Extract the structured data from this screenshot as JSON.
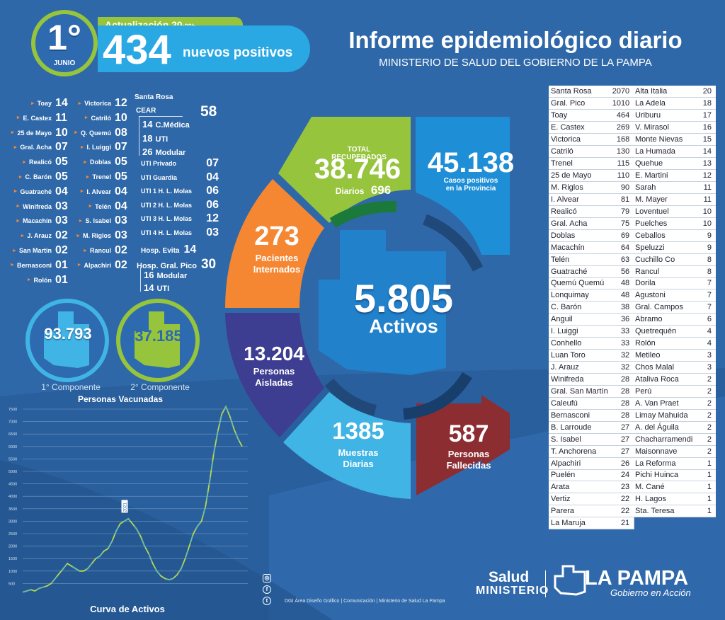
{
  "header": {
    "date_day": "1°",
    "date_month": "JUNIO",
    "update_label": "Actualización 20",
    "update_time": ":00h",
    "new_positives": "434",
    "new_positives_label": "nuevos positivos",
    "title": "Informe epidemiológico diario",
    "subtitle": "MINISTERIO DE SALUD DEL GOBIERNO DE LA PAMPA"
  },
  "localities_left": [
    {
      "name": "Toay",
      "value": "14"
    },
    {
      "name": "E. Castex",
      "value": "11"
    },
    {
      "name": "25 de Mayo",
      "value": "10"
    },
    {
      "name": "Gral. Acha",
      "value": "07"
    },
    {
      "name": "Realicó",
      "value": "05"
    },
    {
      "name": "C. Barón",
      "value": "05"
    },
    {
      "name": "Guatraché",
      "value": "04"
    },
    {
      "name": "Winifreda",
      "value": "03"
    },
    {
      "name": "Macachín",
      "value": "03"
    },
    {
      "name": "J. Arauz",
      "value": "02"
    },
    {
      "name": "San Martin",
      "value": "02"
    },
    {
      "name": "Bernasconi",
      "value": "01"
    },
    {
      "name": "Rolón",
      "value": "01"
    }
  ],
  "localities_mid": [
    {
      "name": "Victorica",
      "value": "12"
    },
    {
      "name": "Catriló",
      "value": "10"
    },
    {
      "name": "Q. Quemú",
      "value": "08"
    },
    {
      "name": "I. Luiggi",
      "value": "07"
    },
    {
      "name": "Doblas",
      "value": "05"
    },
    {
      "name": "Trenel",
      "value": "05"
    },
    {
      "name": "I. Alvear",
      "value": "04"
    },
    {
      "name": "Telén",
      "value": "04"
    },
    {
      "name": "S. Isabel",
      "value": "03"
    },
    {
      "name": "M. Riglos",
      "value": "03"
    },
    {
      "name": "Rancul",
      "value": "02"
    },
    {
      "name": "Alpachiri",
      "value": "02"
    }
  ],
  "santa_rosa": {
    "label": "Santa Rosa",
    "cear": "CEAR",
    "total": "58",
    "cear_items": [
      {
        "value": "14",
        "name": "C.Médica"
      },
      {
        "value": "18",
        "name": "UTI"
      },
      {
        "value": "26",
        "name": "Modular"
      }
    ],
    "uti_items": [
      {
        "name": "UTI Privado",
        "value": "07"
      },
      {
        "name": "UTI Guardia",
        "value": "04"
      },
      {
        "name": "UTI 1 H. L. Molas",
        "value": "06"
      },
      {
        "name": "UTI 2 H. L. Molas",
        "value": "06"
      },
      {
        "name": "UTI 3 H. L. Molas",
        "value": "12"
      },
      {
        "name": "UTI 4 H. L. Molas",
        "value": "03"
      }
    ],
    "evita_label": "Hosp. Evita",
    "evita_value": "14",
    "pico_label": "Hosp. Gral. Pico",
    "pico_value": "30",
    "pico_items": [
      {
        "value": "16",
        "name": "Modular"
      },
      {
        "value": "14",
        "name": "UTI"
      }
    ]
  },
  "vaccination": {
    "first_value": "93.793",
    "first_label": "1° Componente",
    "second_value": "37.185",
    "second_label": "2° Componente",
    "title": "Personas Vacunadas"
  },
  "chart_data": {
    "type": "line",
    "title": "Curva de Activos",
    "xlabel": "",
    "ylabel": "",
    "ylim": [
      0,
      7500
    ],
    "yticks": [
      "500",
      "1000",
      "1500",
      "2000",
      "2500",
      "3000",
      "3500",
      "4000",
      "4500",
      "5000",
      "5500",
      "6000",
      "6500",
      "7000",
      "7500"
    ],
    "annotation": "2021",
    "series": [
      {
        "values": [
          150,
          200,
          250,
          200,
          300,
          350,
          400,
          500,
          700,
          900,
          1100,
          1300,
          1200,
          1100,
          1000,
          1000,
          1100,
          1300,
          1500,
          1600,
          1800,
          1900,
          2200,
          2600,
          2900,
          3000,
          3100,
          2900,
          2700,
          2400,
          2000,
          1700,
          1300,
          1000,
          800,
          700,
          650,
          700,
          850,
          1100,
          1500,
          2000,
          2500,
          2800,
          3000,
          3600,
          4600,
          5700,
          6600,
          7300,
          7600,
          7200,
          6700,
          6300,
          6000
        ]
      }
    ]
  },
  "center": {
    "activos_value": "5.805",
    "activos_label": "Activos",
    "recuperados_label": "TOTAL RECUPERADOS",
    "recuperados_value": "38.746",
    "diarios_label": "Diarios",
    "diarios_value": "696",
    "positivos_value": "45.138",
    "positivos_label_1": "Casos positivos",
    "positivos_label_2": "en la Provincia",
    "internados_value": "273",
    "internados_label_1": "Pacientes",
    "internados_label_2": "Internados",
    "aisladas_value": "13.204",
    "aisladas_label_1": "Personas",
    "aisladas_label_2": "Aisladas",
    "muestras_value": "1385",
    "muestras_label_1": "Muestras",
    "muestras_label_2": "Diarias",
    "fallecidas_value": "587",
    "fallecidas_label_1": "Personas",
    "fallecidas_label_2": "Fallecidas",
    "colors": {
      "green": "#96c43c",
      "blue": "#1e8fd6",
      "orange": "#f58733",
      "purple": "#3d3d91",
      "lightblue": "#40b4e5",
      "red": "#8c2d31"
    }
  },
  "table_left": [
    [
      "Santa Rosa",
      "2070"
    ],
    [
      "Gral. Pico",
      "1010"
    ],
    [
      "Toay",
      "464"
    ],
    [
      "E. Castex",
      "269"
    ],
    [
      "Victorica",
      "168"
    ],
    [
      "Catriló",
      "130"
    ],
    [
      "Trenel",
      "115"
    ],
    [
      "25 de Mayo",
      "110"
    ],
    [
      "M. Riglos",
      "90"
    ],
    [
      "I. Alvear",
      "81"
    ],
    [
      "Realicó",
      "79"
    ],
    [
      "Gral. Acha",
      "75"
    ],
    [
      "Doblas",
      "69"
    ],
    [
      "Macachín",
      "64"
    ],
    [
      "Telén",
      "63"
    ],
    [
      "Guatraché",
      "56"
    ],
    [
      "Quemú Quemú",
      "48"
    ],
    [
      "Lonquimay",
      "48"
    ],
    [
      "C. Barón",
      "38"
    ],
    [
      "Anguil",
      "36"
    ],
    [
      "I. Luiggi",
      "33"
    ],
    [
      "Conhello",
      "33"
    ],
    [
      "Luan Toro",
      "32"
    ],
    [
      "J. Arauz",
      "32"
    ],
    [
      "Winifreda",
      "28"
    ],
    [
      "Gral. San Martín",
      "28"
    ],
    [
      "Caleufú",
      "28"
    ],
    [
      "Bernasconi",
      "28"
    ],
    [
      "B. Larroude",
      "27"
    ],
    [
      "S. Isabel",
      "27"
    ],
    [
      "T. Anchorena",
      "27"
    ],
    [
      "Alpachiri",
      "26"
    ],
    [
      "Puelén",
      "24"
    ],
    [
      "Arata",
      "23"
    ],
    [
      "Vertiz",
      "22"
    ],
    [
      "Parera",
      "22"
    ],
    [
      "La Maruja",
      "21"
    ]
  ],
  "table_right": [
    [
      "Alta Italia",
      "20"
    ],
    [
      "La Adela",
      "18"
    ],
    [
      "Uriburu",
      "17"
    ],
    [
      "V. Mirasol",
      "16"
    ],
    [
      "Monte Nievas",
      "15"
    ],
    [
      "La Humada",
      "14"
    ],
    [
      "Quehue",
      "13"
    ],
    [
      "E. Martini",
      "12"
    ],
    [
      "Sarah",
      "11"
    ],
    [
      "M. Mayer",
      "11"
    ],
    [
      "Loventuel",
      "10"
    ],
    [
      "Puelches",
      "10"
    ],
    [
      "Ceballos",
      "9"
    ],
    [
      "Speluzzi",
      "9"
    ],
    [
      "Cuchillo Co",
      "8"
    ],
    [
      "Rancul",
      "8"
    ],
    [
      "Dorila",
      "7"
    ],
    [
      "Agustoni",
      "7"
    ],
    [
      "Gral. Campos",
      "7"
    ],
    [
      "Abramo",
      "6"
    ],
    [
      "Quetrequén",
      "4"
    ],
    [
      "Rolón",
      "4"
    ],
    [
      "Metileo",
      "3"
    ],
    [
      "Chos Malal",
      "3"
    ],
    [
      "Ataliva Roca",
      "2"
    ],
    [
      "Perú",
      "2"
    ],
    [
      "A. Van Praet",
      "2"
    ],
    [
      "Limay Mahuida",
      "2"
    ],
    [
      "A. del Águila",
      "2"
    ],
    [
      "Chacharramendi",
      "2"
    ],
    [
      "Maisonnave",
      "2"
    ],
    [
      "La Reforma",
      "1"
    ],
    [
      "Pichi Huinca",
      "1"
    ],
    [
      "M. Cané",
      "1"
    ],
    [
      "H. Lagos",
      "1"
    ],
    [
      "Sta. Teresa",
      "1"
    ]
  ],
  "footer": {
    "salud": "Salud",
    "ministerio": "MINISTERIO",
    "lapampa": "LA PAMPA",
    "gobierno": "Gobierno en Acción",
    "credit": "DGI Área Diseño Gráfico | Comunicación | Ministerio de Salud La Pampa"
  }
}
